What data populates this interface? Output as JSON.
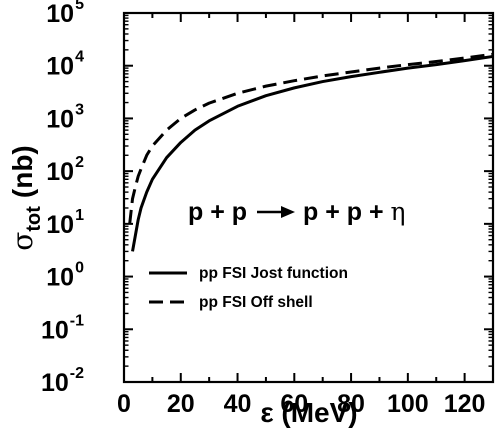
{
  "chart_data": {
    "type": "line",
    "xlabel": "ε (MeV)",
    "ylabel_symbol": "σ",
    "ylabel_subscript": "tot",
    "ylabel_unit": "(nb)",
    "xlim": [
      0,
      130
    ],
    "ylim": [
      0.01,
      100000
    ],
    "y_scale": "log",
    "grid": false,
    "x_ticks": [
      0,
      20,
      40,
      60,
      80,
      100,
      120
    ],
    "y_tick_exponents": [
      -2,
      -1,
      0,
      1,
      2,
      3,
      4,
      5
    ],
    "annotation": {
      "lhs": "p + p",
      "rhs_prefix": "p + p + ",
      "rhs_symbol": "η"
    },
    "legend_position": "lower-left",
    "series": [
      {
        "name": "pp FSI Jost function",
        "style": "solid",
        "color": "#000000",
        "x": [
          3,
          4,
          5,
          6,
          8,
          10,
          15,
          20,
          25,
          30,
          40,
          50,
          60,
          70,
          80,
          90,
          100,
          110,
          120,
          130
        ],
        "y": [
          3,
          6,
          12,
          20,
          40,
          70,
          180,
          350,
          600,
          900,
          1700,
          2700,
          3800,
          5000,
          6200,
          7500,
          9000,
          10500,
          12500,
          15000
        ]
      },
      {
        "name": "pp FSI Off shell",
        "style": "dashed",
        "color": "#000000",
        "x": [
          2,
          3,
          4,
          5,
          6,
          8,
          10,
          15,
          20,
          25,
          30,
          40,
          50,
          60,
          70,
          80,
          90,
          100,
          110,
          120,
          130
        ],
        "y": [
          10,
          30,
          50,
          80,
          110,
          200,
          300,
          600,
          1000,
          1450,
          1950,
          3000,
          4100,
          5200,
          6400,
          7600,
          9000,
          10500,
          12000,
          14000,
          16500
        ]
      }
    ]
  }
}
